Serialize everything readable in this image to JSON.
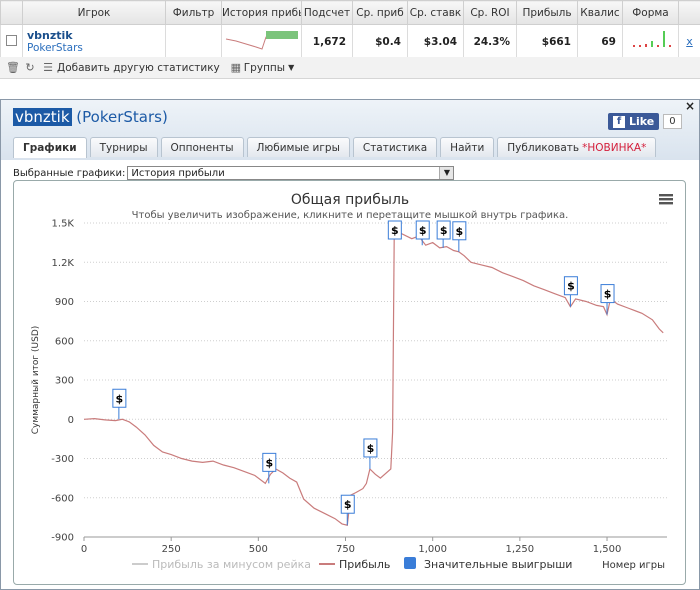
{
  "table": {
    "headers": [
      "",
      "Игрок",
      "Фильтр",
      "История прибы",
      "Подсчет",
      "Ср. приб",
      "Ср. ставк",
      "Ср. ROI",
      "Прибыль",
      "Квалис",
      "Форма",
      ""
    ],
    "row": {
      "player": "vbnztik",
      "site": "PokerStars",
      "count": "1,672",
      "avg_profit": "$0.4",
      "avg_stake": "$3.04",
      "avg_roi": "24.3%",
      "profit": "$661",
      "ability": "69",
      "remove": "x"
    }
  },
  "toolbar": {
    "add_stats": "Добавить другую статистику",
    "groups": "Группы"
  },
  "dialog": {
    "player": "vbnztik",
    "site": "(PokerStars)",
    "close": "×",
    "fb_like": "Like",
    "fb_count": "0",
    "tabs": [
      "Графики",
      "Турниры",
      "Оппоненты",
      "Любимые игры",
      "Статистика",
      "Найти",
      "Публиковать"
    ],
    "tab_new": "*НОВИНКА*",
    "chart_select_label": "Выбранные графики:",
    "chart_select_value": "История прибыли"
  },
  "chart_data": {
    "type": "line",
    "title": "Общая прибыль",
    "subtitle": "Чтобы увеличить изображение, кликните и перетащите мышкой внутрь графика.",
    "ylabel": "Суммарный итог (USD)",
    "xlabel": "Номер игры",
    "xlim": [
      0,
      1672
    ],
    "ylim": [
      -900,
      1500
    ],
    "x_ticks": [
      0,
      250,
      500,
      750,
      1000,
      1250,
      1500
    ],
    "x_tick_labels": [
      "0",
      "250",
      "500",
      "750",
      "1,000",
      "1,250",
      "1,500"
    ],
    "y_ticks": [
      -900,
      -600,
      -300,
      0,
      300,
      600,
      900,
      1200,
      1500
    ],
    "y_tick_labels": [
      "-900",
      "-600",
      "-300",
      "0",
      "300",
      "600",
      "900",
      "1.2K",
      "1.5K"
    ],
    "grid": true,
    "series": [
      {
        "name": "Прибыль",
        "color": "#c97c7c",
        "points": [
          [
            0,
            0
          ],
          [
            30,
            5
          ],
          [
            60,
            -5
          ],
          [
            90,
            -10
          ],
          [
            110,
            0
          ],
          [
            130,
            -20
          ],
          [
            150,
            -60
          ],
          [
            175,
            -120
          ],
          [
            200,
            -200
          ],
          [
            225,
            -250
          ],
          [
            250,
            -270
          ],
          [
            280,
            -300
          ],
          [
            310,
            -320
          ],
          [
            340,
            -330
          ],
          [
            370,
            -320
          ],
          [
            400,
            -350
          ],
          [
            430,
            -370
          ],
          [
            460,
            -400
          ],
          [
            490,
            -430
          ],
          [
            520,
            -490
          ],
          [
            535,
            -420
          ],
          [
            550,
            -380
          ],
          [
            570,
            -410
          ],
          [
            590,
            -450
          ],
          [
            610,
            -480
          ],
          [
            630,
            -610
          ],
          [
            660,
            -680
          ],
          [
            690,
            -720
          ],
          [
            720,
            -760
          ],
          [
            740,
            -800
          ],
          [
            755,
            -810
          ],
          [
            765,
            -580
          ],
          [
            780,
            -560
          ],
          [
            800,
            -530
          ],
          [
            810,
            -490
          ],
          [
            820,
            -380
          ],
          [
            835,
            -420
          ],
          [
            850,
            -450
          ],
          [
            880,
            -380
          ],
          [
            885,
            -100
          ],
          [
            890,
            1480
          ],
          [
            910,
            1420
          ],
          [
            940,
            1380
          ],
          [
            960,
            1400
          ],
          [
            980,
            1330
          ],
          [
            1000,
            1350
          ],
          [
            1020,
            1310
          ],
          [
            1040,
            1320
          ],
          [
            1060,
            1290
          ],
          [
            1075,
            1280
          ],
          [
            1090,
            1250
          ],
          [
            1110,
            1200
          ],
          [
            1140,
            1180
          ],
          [
            1170,
            1160
          ],
          [
            1200,
            1120
          ],
          [
            1230,
            1090
          ],
          [
            1260,
            1060
          ],
          [
            1290,
            1020
          ],
          [
            1320,
            990
          ],
          [
            1350,
            960
          ],
          [
            1380,
            930
          ],
          [
            1395,
            860
          ],
          [
            1410,
            920
          ],
          [
            1440,
            900
          ],
          [
            1470,
            870
          ],
          [
            1490,
            860
          ],
          [
            1500,
            800
          ],
          [
            1510,
            920
          ],
          [
            1530,
            880
          ],
          [
            1560,
            850
          ],
          [
            1600,
            810
          ],
          [
            1630,
            760
          ],
          [
            1650,
            690
          ],
          [
            1661,
            661
          ]
        ]
      },
      {
        "name": "Прибыль за минусом рейка",
        "color": "#dddddd",
        "points": []
      }
    ],
    "flags": [
      {
        "x": 100,
        "y": 0,
        "label": "$"
      },
      {
        "x": 530,
        "y": -490,
        "label": "$"
      },
      {
        "x": 755,
        "y": -810,
        "label": "$"
      },
      {
        "x": 820,
        "y": -380,
        "label": "$"
      },
      {
        "x": 890,
        "y": 1480,
        "label": "$"
      },
      {
        "x": 970,
        "y": 1330,
        "label": "$"
      },
      {
        "x": 1030,
        "y": 1310,
        "label": "$"
      },
      {
        "x": 1075,
        "y": 1280,
        "label": "$"
      },
      {
        "x": 1395,
        "y": 860,
        "label": "$"
      },
      {
        "x": 1500,
        "y": 800,
        "label": "$"
      }
    ],
    "legend": {
      "placement": "bottom",
      "items": [
        {
          "label": "Прибыль за минусом рейка",
          "color": "#cccccc",
          "symbol": "line",
          "muted": true
        },
        {
          "label": "Прибыль",
          "color": "#c97c7c",
          "symbol": "line",
          "muted": false
        },
        {
          "label": "Значительные выигрыши",
          "color": "#3a7dd8",
          "symbol": "box",
          "muted": false
        }
      ]
    },
    "menu_icon": "hamburger-icon"
  }
}
